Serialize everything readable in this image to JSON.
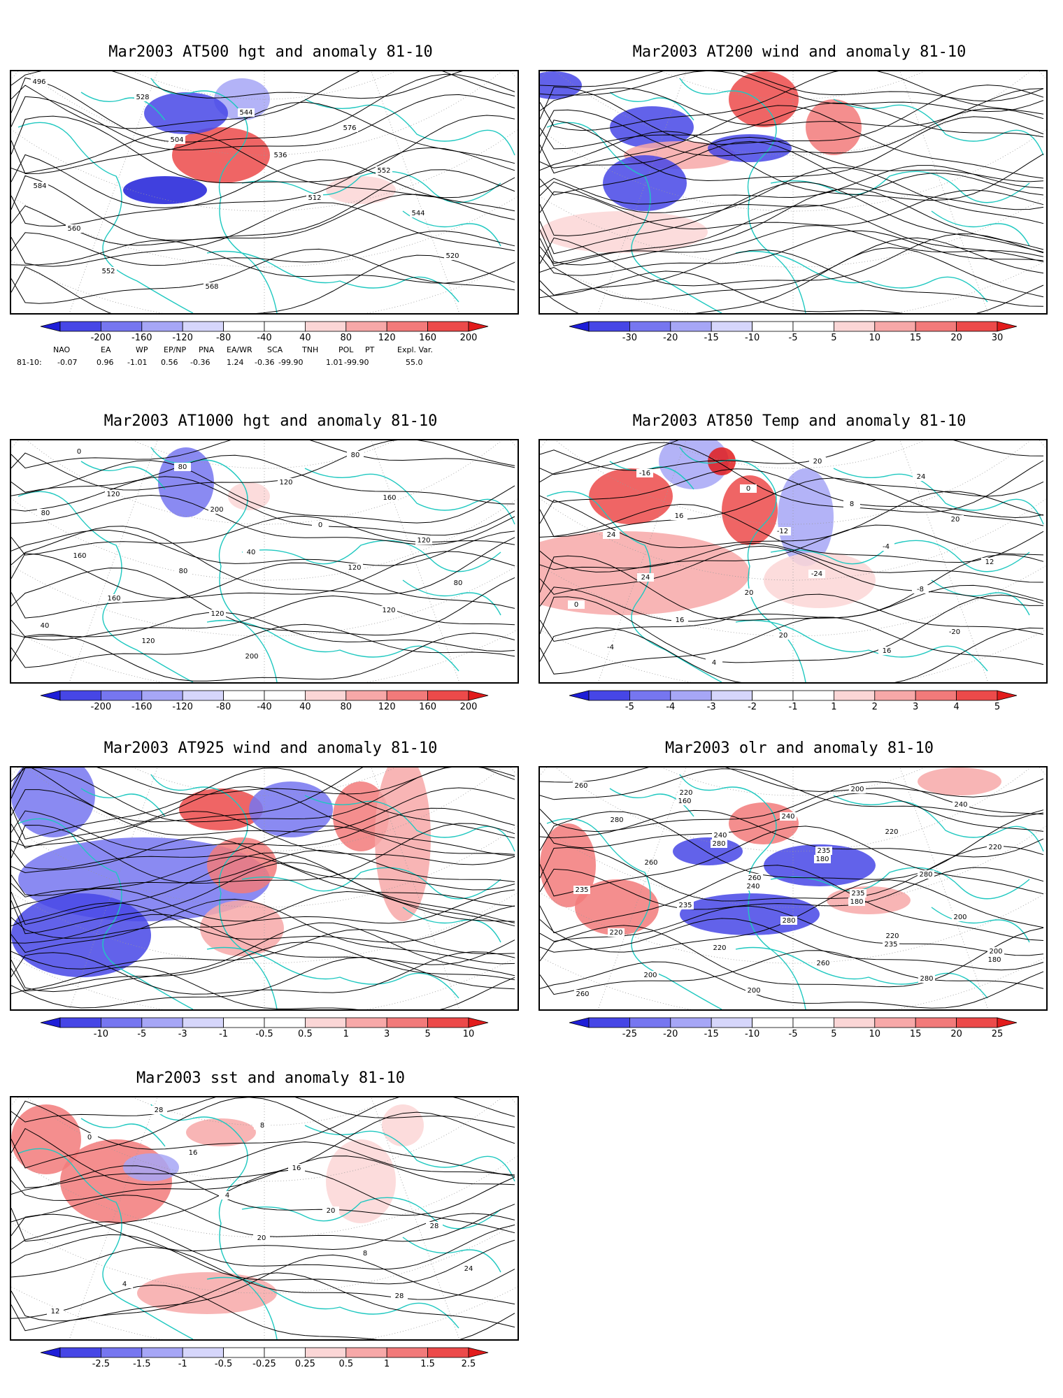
{
  "panels": [
    {
      "id": "p1",
      "title": "Mar2003 AT500 hgt and anomaly 81-10",
      "contour_labels": [
        "496",
        "504",
        "512",
        "520",
        "528",
        "536",
        "544",
        "552",
        "544",
        "552",
        "560",
        "568",
        "576",
        "584"
      ],
      "colorbar": [
        "-200",
        "-160",
        "-120",
        "-80",
        "-40",
        "40",
        "80",
        "120",
        "160",
        "200"
      ]
    },
    {
      "id": "p2",
      "title": "Mar2003 AT200 wind and anomaly 81-10",
      "contour_labels": [],
      "colorbar": [
        "-30",
        "-20",
        "-15",
        "-10",
        "-5",
        "5",
        "10",
        "15",
        "20",
        "30"
      ]
    },
    {
      "id": "p3",
      "title": "Mar2003 AT1000 hgt and anomaly 81-10",
      "contour_labels": [
        "120",
        "40",
        "120",
        "0",
        "200",
        "120",
        "40",
        "80",
        "0",
        "80",
        "120",
        "120",
        "120",
        "160",
        "200",
        "160",
        "160",
        "120",
        "80",
        "80",
        "80"
      ],
      "colorbar": [
        "-200",
        "-160",
        "-120",
        "-80",
        "-40",
        "40",
        "80",
        "120",
        "160",
        "200"
      ]
    },
    {
      "id": "p4",
      "title": "Mar2003 AT850 Temp and anomaly 81-10",
      "contour_labels": [
        "16",
        "-24",
        "-20",
        "-16",
        "-12",
        "-8",
        "-4",
        "0",
        "-4",
        "0",
        "4",
        "8",
        "12",
        "16",
        "20",
        "20",
        "24",
        "20",
        "24",
        "24",
        "20",
        "16"
      ],
      "colorbar": [
        "-5",
        "-4",
        "-3",
        "-2",
        "-1",
        "1",
        "2",
        "3",
        "4",
        "5"
      ]
    },
    {
      "id": "p5",
      "title": "Mar2003 AT925 wind and anomaly 81-10",
      "contour_labels": [],
      "colorbar": [
        "-10",
        "-5",
        "-3",
        "-1",
        "-0.5",
        "0.5",
        "1",
        "3",
        "5",
        "10"
      ]
    },
    {
      "id": "p6",
      "title": "Mar2003 olr and anomaly 81-10",
      "contour_labels": [
        "240",
        "235",
        "260",
        "280",
        "180",
        "180",
        "160",
        "180",
        "200",
        "200",
        "240",
        "280",
        "220",
        "200",
        "220",
        "235",
        "220",
        "200",
        "220",
        "235",
        "260",
        "240",
        "260",
        "280",
        "280",
        "280",
        "260",
        "220",
        "260",
        "240",
        "235",
        "200",
        "220",
        "235"
      ],
      "colorbar": [
        "-25",
        "-20",
        "-15",
        "-10",
        "-5",
        "5",
        "10",
        "15",
        "20",
        "25"
      ]
    },
    {
      "id": "p7",
      "title": "Mar2003 sst and anomaly 81-10",
      "contour_labels": [
        "20",
        "28",
        "0",
        "4",
        "8",
        "12",
        "16",
        "20",
        "24",
        "28",
        "16",
        "28",
        "4",
        "8"
      ],
      "colorbar": [
        "-2.5",
        "-1.5",
        "-1",
        "-0.5",
        "-0.25",
        "0.25",
        "0.5",
        "1",
        "1.5",
        "2.5"
      ]
    }
  ],
  "teleconnections": {
    "headers": [
      "NAO",
      "EA",
      "WP",
      "EP/NP",
      "PNA",
      "EA/WR",
      "SCA",
      "TNH",
      "POL",
      "PT",
      "Expl. Var."
    ],
    "row_label": "81-10:",
    "values": [
      "-0.07",
      "0.96",
      "-1.01",
      "0.56",
      "-0.36",
      "1.24",
      "-0.36",
      "-99.90",
      "1.01",
      "-99.90",
      "55.0"
    ],
    "row_text": "81-10:   -0.07   0.96  -1.01   0.56  -0.36   1.24  -0.36-99.90   1.01-99.90     55.0"
  },
  "colors": {
    "coast": "#1fc8c0",
    "neg": [
      "#1e1ed8",
      "#4646e6",
      "#7676f0",
      "#a6a6f6",
      "#d6d6fb"
    ],
    "pos": [
      "#fbd6d6",
      "#f7a8a8",
      "#f27a7a",
      "#ec4a4a",
      "#e21c1c"
    ]
  }
}
